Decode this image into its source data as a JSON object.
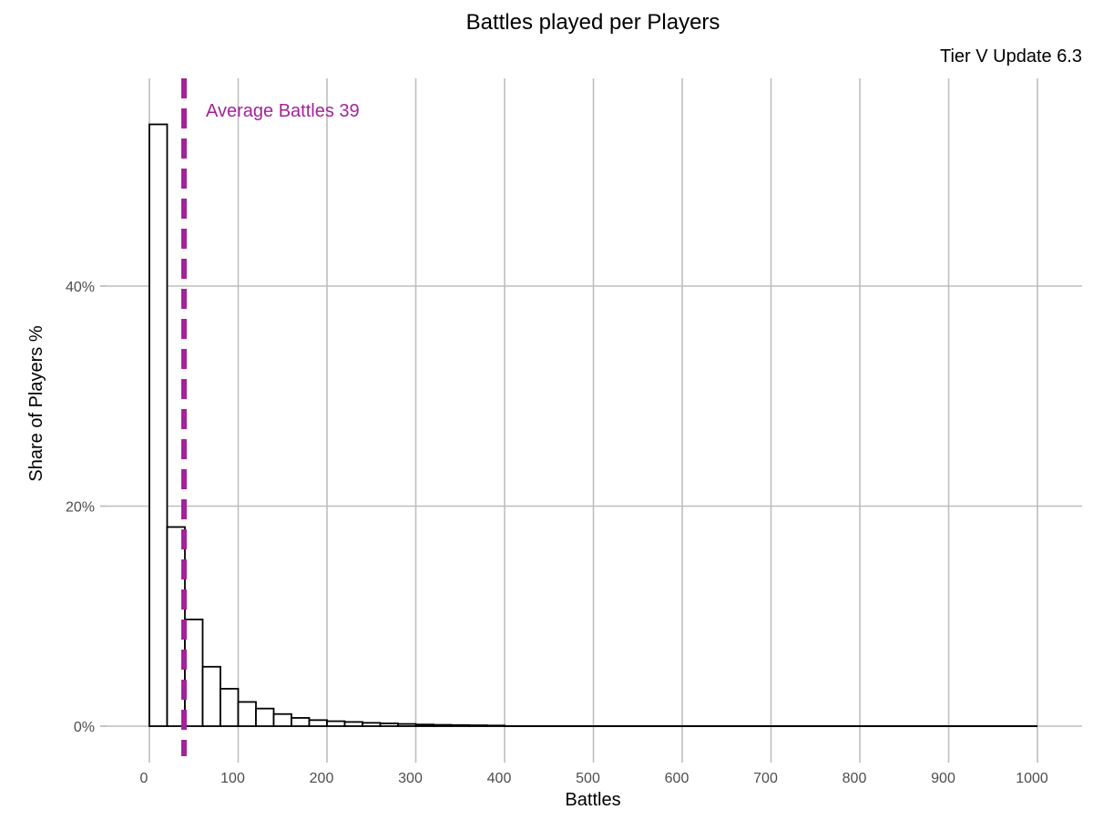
{
  "chart_data": {
    "type": "bar",
    "title": "Battles played per Players",
    "subtitle": "Tier V Update 6.3",
    "xlabel": "Battles",
    "ylabel": "Share of Players %",
    "xlim": [
      0,
      1000
    ],
    "ylim": [
      0,
      55
    ],
    "bin_width": 20,
    "x_ticks": [
      0,
      100,
      200,
      300,
      400,
      500,
      600,
      700,
      800,
      900,
      1000
    ],
    "x_tick_labels": [
      "0",
      "100",
      "200",
      "300",
      "400",
      "500",
      "600",
      "700",
      "800",
      "900",
      "1000"
    ],
    "y_ticks": [
      0,
      20,
      40
    ],
    "y_tick_labels": [
      "0%",
      "20%",
      "40%"
    ],
    "grid": true,
    "bins": [
      {
        "start": 0,
        "end": 20,
        "value": 54.7
      },
      {
        "start": 20,
        "end": 40,
        "value": 18.1
      },
      {
        "start": 40,
        "end": 60,
        "value": 9.7
      },
      {
        "start": 60,
        "end": 80,
        "value": 5.4
      },
      {
        "start": 80,
        "end": 100,
        "value": 3.4
      },
      {
        "start": 100,
        "end": 120,
        "value": 2.2
      },
      {
        "start": 120,
        "end": 140,
        "value": 1.6
      },
      {
        "start": 140,
        "end": 160,
        "value": 1.1
      },
      {
        "start": 160,
        "end": 180,
        "value": 0.75
      },
      {
        "start": 180,
        "end": 200,
        "value": 0.55
      },
      {
        "start": 200,
        "end": 220,
        "value": 0.45
      },
      {
        "start": 220,
        "end": 240,
        "value": 0.38
      },
      {
        "start": 240,
        "end": 260,
        "value": 0.3
      },
      {
        "start": 260,
        "end": 280,
        "value": 0.25
      },
      {
        "start": 280,
        "end": 300,
        "value": 0.2
      },
      {
        "start": 300,
        "end": 320,
        "value": 0.15
      },
      {
        "start": 320,
        "end": 340,
        "value": 0.12
      },
      {
        "start": 340,
        "end": 360,
        "value": 0.1
      },
      {
        "start": 360,
        "end": 380,
        "value": 0.08
      },
      {
        "start": 380,
        "end": 400,
        "value": 0.06
      }
    ],
    "reference_line": {
      "x": 39,
      "label": "Average Battles 39",
      "color": "#A3239A",
      "style": "dashed"
    },
    "colors": {
      "bar_fill": "#ffffff",
      "bar_stroke": "#000000",
      "grid": "#bebebe"
    }
  }
}
